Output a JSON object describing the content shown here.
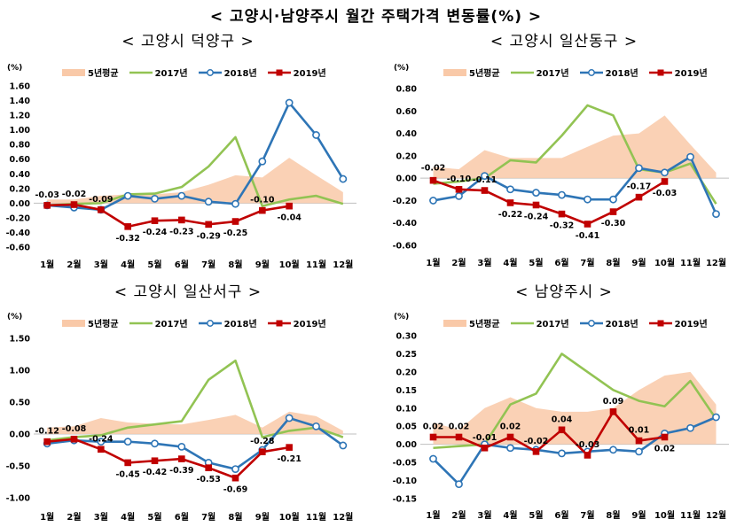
{
  "title": "< 고양시·남양주시 월간 주택가격 변동률(%) >",
  "colors": {
    "avg5": "#f9c9a8",
    "y2017": "#92c353",
    "y2018": "#2e75b6",
    "y2019": "#c00000"
  },
  "legend": [
    "5년평균",
    "2017년",
    "2018년",
    "2019년"
  ],
  "chart_data": [
    {
      "type": "line",
      "title": "< 고양시 덕양구 >",
      "unit": "(%)",
      "categories": [
        "1월",
        "2월",
        "3월",
        "4월",
        "5월",
        "6월",
        "7월",
        "8월",
        "9월",
        "10월",
        "11월",
        "12월"
      ],
      "ylim": [
        -0.6,
        1.6
      ],
      "yticks": [
        -0.6,
        -0.4,
        -0.2,
        0,
        0.2,
        0.4,
        0.6,
        0.8,
        1.0,
        1.2,
        1.4,
        1.6
      ],
      "yticklabels": [
        "-0.60",
        "-0.40",
        "-0.20",
        "0.00",
        "0.20",
        "0.40",
        "0.60",
        "0.80",
        "1.00",
        "1.20",
        "1.40",
        "1.60"
      ],
      "series": [
        {
          "name": "5년평균",
          "values": [
            0.05,
            0.05,
            0.1,
            0.12,
            0.12,
            0.15,
            0.25,
            0.38,
            0.35,
            0.62,
            0.38,
            0.15
          ]
        },
        {
          "name": "2017년",
          "values": [
            -0.03,
            -0.01,
            0.0,
            0.12,
            0.13,
            0.22,
            0.5,
            0.9,
            -0.04,
            0.05,
            0.1,
            -0.01
          ]
        },
        {
          "name": "2018년",
          "values": [
            -0.03,
            -0.06,
            -0.09,
            0.1,
            0.06,
            0.1,
            0.02,
            -0.01,
            0.57,
            1.37,
            0.93,
            0.33
          ]
        },
        {
          "name": "2019년",
          "values": [
            -0.03,
            -0.02,
            -0.09,
            -0.32,
            -0.24,
            -0.23,
            -0.29,
            -0.25,
            -0.1,
            -0.04
          ]
        }
      ],
      "labels": [
        "-0.03",
        "-0.02",
        "-0.09",
        "-0.32",
        "-0.24",
        "-0.23",
        "-0.29",
        "-0.25",
        "-0.10",
        "-0.04"
      ]
    },
    {
      "type": "line",
      "title": "< 고양시 일산동구 >",
      "unit": "(%)",
      "categories": [
        "1월",
        "2월",
        "3월",
        "4월",
        "5월",
        "6월",
        "7월",
        "8월",
        "9월",
        "10월",
        "11월",
        "12월"
      ],
      "ylim": [
        -0.6,
        0.8
      ],
      "yticks": [
        -0.6,
        -0.4,
        -0.2,
        0,
        0.2,
        0.4,
        0.6,
        0.8
      ],
      "yticklabels": [
        "-0.60",
        "-0.40",
        "-0.20",
        "0.00",
        "0.20",
        "0.40",
        "0.60",
        "0.80"
      ],
      "series": [
        {
          "name": "5년평균",
          "values": [
            0.1,
            0.08,
            0.25,
            0.18,
            0.18,
            0.18,
            0.28,
            0.38,
            0.4,
            0.56,
            0.3,
            0.05
          ]
        },
        {
          "name": "2017년",
          "values": [
            -0.05,
            -0.03,
            0.0,
            0.16,
            0.14,
            0.38,
            0.65,
            0.56,
            0.08,
            0.05,
            0.13,
            -0.23
          ]
        },
        {
          "name": "2018년",
          "values": [
            -0.2,
            -0.16,
            0.02,
            -0.1,
            -0.13,
            -0.15,
            -0.19,
            -0.19,
            0.09,
            0.05,
            0.19,
            -0.32
          ]
        },
        {
          "name": "2019년",
          "values": [
            -0.02,
            -0.1,
            -0.11,
            -0.22,
            -0.24,
            -0.32,
            -0.41,
            -0.3,
            -0.17,
            -0.03
          ]
        }
      ],
      "labels": [
        "-0.02",
        "-0.10",
        "-0.11",
        "-0.22",
        "-0.24",
        "-0.32",
        "-0.41",
        "-0.30",
        "-0.17",
        "-0.03"
      ]
    },
    {
      "type": "line",
      "title": "< 고양시 일산서구 >",
      "unit": "(%)",
      "categories": [
        "1월",
        "2월",
        "3월",
        "4월",
        "5월",
        "6월",
        "7월",
        "8월",
        "9월",
        "10월",
        "11월",
        "12월"
      ],
      "ylim": [
        -1.0,
        1.5
      ],
      "yticks": [
        -1.0,
        -0.5,
        0,
        0.5,
        1.0,
        1.5
      ],
      "yticklabels": [
        "-1.00",
        "-0.50",
        "0.00",
        "0.50",
        "1.00",
        "1.50"
      ],
      "series": [
        {
          "name": "5년평균",
          "values": [
            0.1,
            0.12,
            0.25,
            0.18,
            0.16,
            0.15,
            0.22,
            0.3,
            0.1,
            0.35,
            0.28,
            0.05
          ]
        },
        {
          "name": "2017년",
          "values": [
            -0.1,
            -0.05,
            -0.02,
            0.1,
            0.15,
            0.2,
            0.85,
            1.15,
            -0.05,
            0.05,
            0.1,
            -0.05
          ]
        },
        {
          "name": "2018년",
          "values": [
            -0.15,
            -0.1,
            -0.12,
            -0.12,
            -0.15,
            -0.2,
            -0.45,
            -0.55,
            -0.25,
            0.25,
            0.12,
            -0.18
          ]
        },
        {
          "name": "2019년",
          "values": [
            -0.12,
            -0.08,
            -0.24,
            -0.45,
            -0.42,
            -0.39,
            -0.53,
            -0.69,
            -0.28,
            -0.21
          ]
        }
      ],
      "labels": [
        "-0.12",
        "-0.08",
        "-0.24",
        "-0.45",
        "-0.42",
        "-0.39",
        "-0.53",
        "-0.69",
        "-0.28",
        "-0.21"
      ]
    },
    {
      "type": "line",
      "title": "< 남양주시 >",
      "unit": "(%)",
      "categories": [
        "1월",
        "2월",
        "3월",
        "4월",
        "5월",
        "6월",
        "7월",
        "8월",
        "9월",
        "10월",
        "11월",
        "12월"
      ],
      "ylim": [
        -0.15,
        0.3
      ],
      "yticks": [
        -0.15,
        -0.1,
        -0.05,
        0,
        0.05,
        0.1,
        0.15,
        0.2,
        0.25,
        0.3
      ],
      "yticklabels": [
        "-0.15",
        "-0.10",
        "-0.05",
        "0.00",
        "0.05",
        "0.10",
        "0.15",
        "0.20",
        "0.25",
        "0.30"
      ],
      "series": [
        {
          "name": "5년평균",
          "values": [
            0.06,
            0.04,
            0.1,
            0.13,
            0.1,
            0.09,
            0.09,
            0.1,
            0.15,
            0.19,
            0.2,
            0.11
          ]
        },
        {
          "name": "2017년",
          "values": [
            -0.01,
            -0.005,
            0.0,
            0.11,
            0.14,
            0.25,
            0.2,
            0.15,
            0.12,
            0.105,
            0.175,
            0.07
          ]
        },
        {
          "name": "2018년",
          "values": [
            -0.04,
            -0.11,
            0.0,
            -0.01,
            -0.015,
            -0.025,
            -0.02,
            -0.015,
            -0.02,
            0.03,
            0.045,
            0.075
          ]
        },
        {
          "name": "2019년",
          "values": [
            0.02,
            0.02,
            -0.01,
            0.02,
            -0.02,
            0.04,
            -0.03,
            0.09,
            0.01,
            0.02
          ]
        }
      ],
      "labels": [
        "0.02",
        "0.02",
        "-0.01",
        "0.02",
        "-0.02",
        "0.04",
        "-0.03",
        "0.09",
        "0.01",
        "0.02"
      ]
    }
  ]
}
